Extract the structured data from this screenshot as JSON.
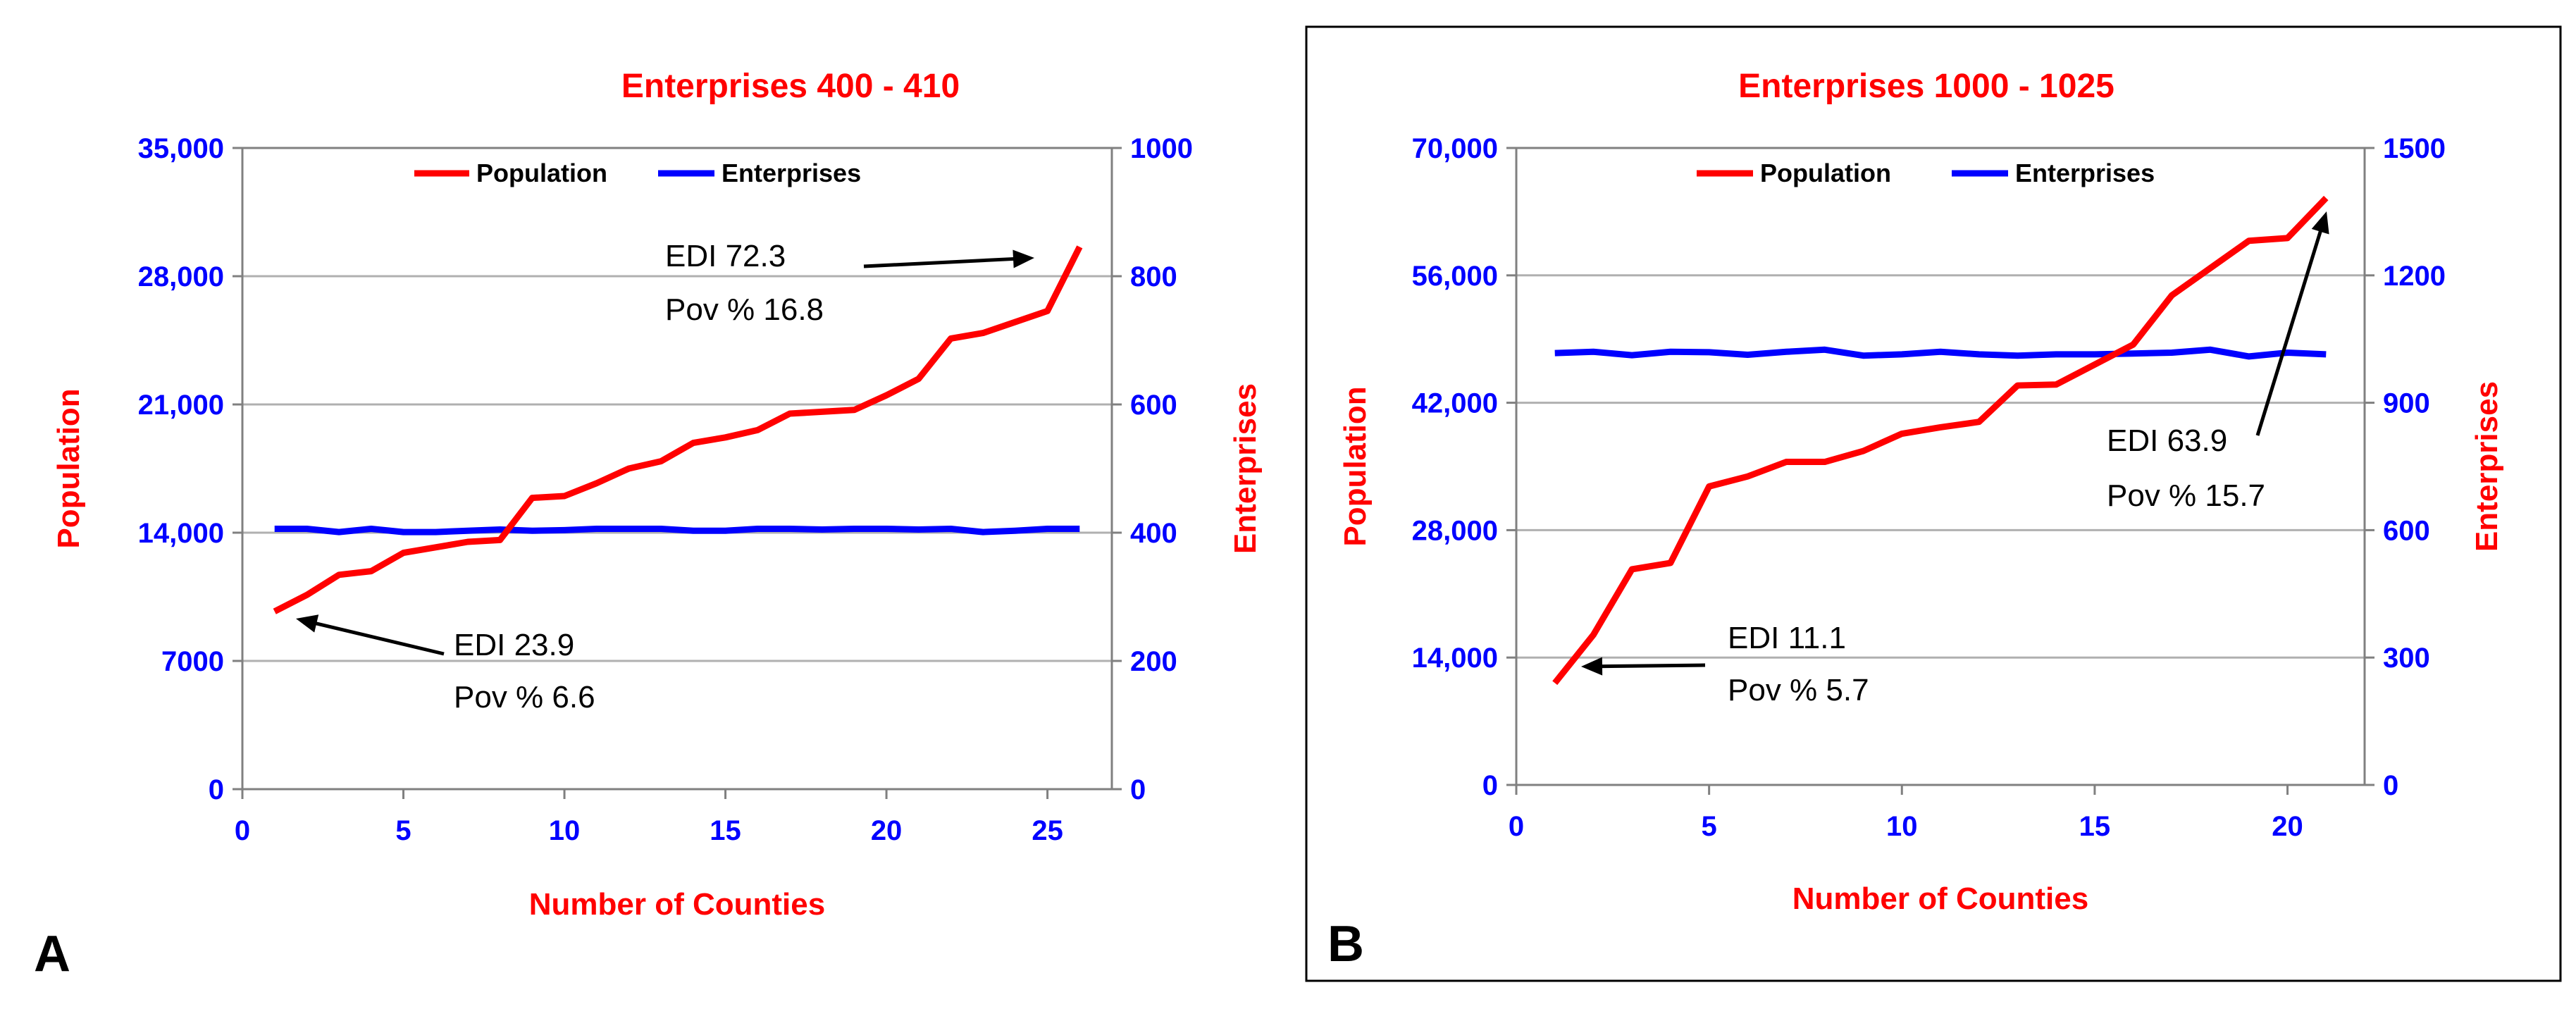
{
  "panels": [
    {
      "panel_label": "A",
      "annotations": [
        {
          "line1": "EDI 72.3",
          "line2": "Pov % 16.8"
        },
        {
          "line1": "EDI 23.9",
          "line2": "Pov % 6.6"
        }
      ]
    },
    {
      "panel_label": "B",
      "annotations": [
        {
          "line1": "EDI 63.9",
          "line2": "Pov % 15.7"
        },
        {
          "line1": "EDI 11.1",
          "line2": "Pov % 5.7"
        }
      ]
    }
  ],
  "colors": {
    "population": "#ff0000",
    "enterprises": "#0000ff",
    "title": "#ff0000",
    "grid": "#b0b0b0",
    "axis_left": "#0000ff",
    "axis_right": "#0000ff",
    "label_left": "#ff0000",
    "label_right": "#ff0000",
    "annotation": "#000000"
  },
  "chart_data": [
    {
      "type": "line",
      "title": "Enterprises 400 - 410",
      "xlabel": "Number of Counties",
      "ylabel": "Population",
      "y2label": "Enterprises",
      "xlim": [
        0,
        27
      ],
      "ylim": [
        0,
        35000
      ],
      "y2lim": [
        0,
        1000
      ],
      "xticks": [
        0,
        5,
        10,
        15,
        20,
        25
      ],
      "yticks": [
        0,
        7000,
        14000,
        21000,
        28000,
        35000
      ],
      "yticklabels": [
        "0",
        "7000",
        "14,000",
        "21,000",
        "28,000",
        "35,000"
      ],
      "y2ticks": [
        0,
        200,
        400,
        600,
        800,
        1000
      ],
      "legend": "top-center",
      "grid": true,
      "x": [
        1,
        2,
        3,
        4,
        5,
        6,
        7,
        8,
        9,
        10,
        11,
        12,
        13,
        14,
        15,
        16,
        17,
        18,
        19,
        20,
        21,
        22,
        23,
        24,
        25,
        26
      ],
      "series": [
        {
          "name": "Population",
          "axis": "left",
          "values": [
            9700,
            10600,
            11700,
            11900,
            12900,
            13200,
            13500,
            13600,
            15900,
            16000,
            16700,
            17500,
            17900,
            18900,
            19200,
            19600,
            20500,
            20600,
            20700,
            21500,
            22400,
            24600,
            24900,
            25500,
            26100,
            29600
          ]
        },
        {
          "name": "Enterprises",
          "axis": "right",
          "values": [
            406,
            406,
            401,
            406,
            401,
            401,
            403,
            405,
            403,
            404,
            406,
            406,
            406,
            403,
            403,
            406,
            406,
            405,
            406,
            406,
            405,
            406,
            401,
            403,
            406,
            406
          ]
        }
      ]
    },
    {
      "type": "line",
      "title": "Enterprises 1000 - 1025",
      "xlabel": "Number of Counties",
      "ylabel": "Population",
      "y2label": "Enterprises",
      "xlim": [
        0,
        22
      ],
      "ylim": [
        0,
        70000
      ],
      "y2lim": [
        0,
        1500
      ],
      "xticks": [
        0,
        5,
        10,
        15,
        20
      ],
      "yticks": [
        0,
        14000,
        28000,
        42000,
        56000,
        70000
      ],
      "yticklabels": [
        "0",
        "14,000",
        "28,000",
        "42,000",
        "56,000",
        "70,000"
      ],
      "y2ticks": [
        0,
        300,
        600,
        900,
        1200,
        1500
      ],
      "legend": "top-center",
      "grid": true,
      "x": [
        1,
        2,
        3,
        4,
        5,
        6,
        7,
        8,
        9,
        10,
        11,
        12,
        13,
        14,
        15,
        16,
        17,
        18,
        19,
        20,
        21
      ],
      "series": [
        {
          "name": "Population",
          "axis": "left",
          "values": [
            11200,
            16500,
            23700,
            24400,
            32800,
            33900,
            35500,
            35500,
            36700,
            38600,
            39300,
            39900,
            43900,
            44000,
            46200,
            48400,
            53800,
            56800,
            59800,
            60100,
            64500
          ]
        },
        {
          "name": "Enterprises",
          "axis": "right",
          "values": [
            1017,
            1020,
            1012,
            1020,
            1019,
            1013,
            1020,
            1025,
            1011,
            1014,
            1020,
            1014,
            1011,
            1014,
            1014,
            1016,
            1018,
            1025,
            1009,
            1018,
            1014
          ]
        }
      ]
    }
  ]
}
